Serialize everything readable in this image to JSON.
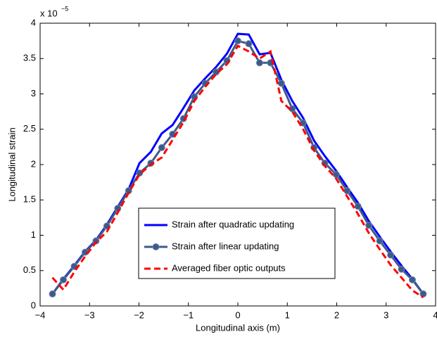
{
  "chart_data": {
    "type": "line",
    "xlabel": "Longitudinal axis (m)",
    "ylabel": "Longitudinal strain",
    "y_multiplier": {
      "base": "x 10",
      "exponent": "−5"
    },
    "x": [
      -3.75,
      -3.53,
      -3.31,
      -3.09,
      -2.87,
      -2.65,
      -2.43,
      -2.21,
      -1.99,
      -1.76,
      -1.54,
      -1.32,
      -1.1,
      -0.88,
      -0.66,
      -0.44,
      -0.22,
      0.0,
      0.22,
      0.44,
      0.66,
      0.88,
      1.1,
      1.32,
      1.54,
      1.76,
      1.99,
      2.21,
      2.43,
      2.65,
      2.87,
      3.09,
      3.31,
      3.53,
      3.75
    ],
    "series": [
      {
        "name": "Strain after quadratic updating",
        "color": "#0000ff",
        "style": "solid",
        "values": [
          0.17,
          0.38,
          0.57,
          0.77,
          0.93,
          1.15,
          1.4,
          1.65,
          2.02,
          2.18,
          2.44,
          2.56,
          2.8,
          3.05,
          3.22,
          3.38,
          3.57,
          3.85,
          3.84,
          3.56,
          3.58,
          3.2,
          2.9,
          2.66,
          2.34,
          2.12,
          1.91,
          1.68,
          1.46,
          1.2,
          0.98,
          0.77,
          0.57,
          0.38,
          0.17
        ]
      },
      {
        "name": "Strain after linear updating",
        "color": "#3d5a8a",
        "style": "marker",
        "values": [
          0.17,
          0.37,
          0.56,
          0.76,
          0.92,
          1.13,
          1.38,
          1.63,
          1.88,
          2.02,
          2.24,
          2.43,
          2.65,
          2.96,
          3.15,
          3.31,
          3.47,
          3.75,
          3.71,
          3.44,
          3.44,
          3.15,
          2.79,
          2.59,
          2.24,
          2.02,
          1.86,
          1.63,
          1.41,
          1.14,
          0.92,
          0.72,
          0.52,
          0.37,
          0.17
        ]
      },
      {
        "name": "Averaged fiber optic outputs",
        "color": "#ff0000",
        "style": "dashed",
        "values": [
          0.4,
          0.23,
          0.48,
          0.7,
          0.9,
          1.05,
          1.32,
          1.6,
          1.86,
          2.0,
          2.1,
          2.35,
          2.6,
          2.9,
          3.1,
          3.28,
          3.42,
          3.68,
          3.6,
          3.5,
          3.6,
          2.9,
          2.75,
          2.5,
          2.2,
          1.98,
          1.8,
          1.55,
          1.3,
          1.03,
          0.8,
          0.58,
          0.4,
          0.22,
          0.12
        ]
      }
    ],
    "xlim": [
      -4,
      4
    ],
    "xticks": [
      {
        "value": -4,
        "label": "−4"
      },
      {
        "value": -3,
        "label": "−3"
      },
      {
        "value": -2,
        "label": "−2"
      },
      {
        "value": -1,
        "label": "−1"
      },
      0,
      1,
      2,
      3,
      4
    ],
    "ylim": [
      0,
      4
    ],
    "yticks": [
      0,
      0.5,
      1,
      1.5,
      2,
      2.5,
      3,
      3.5,
      4
    ],
    "grid": false,
    "legend_position": "lower center"
  }
}
